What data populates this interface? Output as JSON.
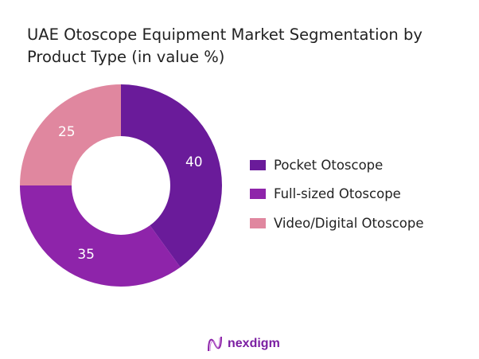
{
  "chart_data": {
    "type": "pie",
    "variant": "donut",
    "title": "UAE Otoscope Equipment Market Segmentation by Product Type (in value %)",
    "categories": [
      "Pocket Otoscope",
      "Full-sized Otoscope",
      "Video/Digital Otoscope"
    ],
    "values": [
      40,
      35,
      25
    ],
    "colors": [
      "#6a1b9a",
      "#8e24aa",
      "#e0879f"
    ],
    "data_labels": [
      "40",
      "35",
      "25"
    ],
    "legend_position": "right"
  },
  "logo": {
    "text": "nexdigm",
    "color": "#7b1fa2"
  }
}
